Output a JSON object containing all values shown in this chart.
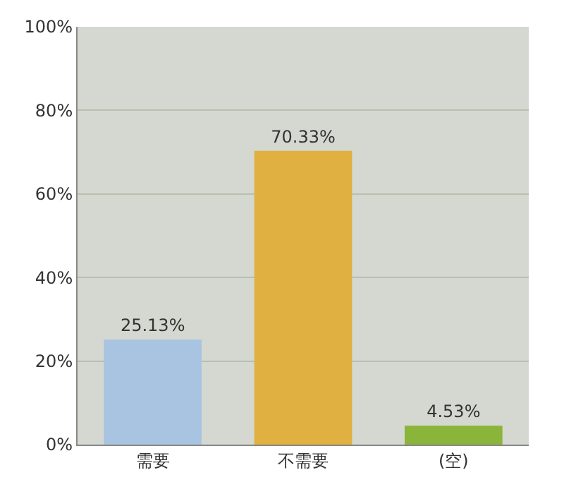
{
  "chart_data": {
    "type": "bar",
    "categories": [
      "需要",
      "不需要",
      "(空)"
    ],
    "values": [
      25.13,
      70.33,
      4.53
    ],
    "colors": [
      "#a9c4e0",
      "#e0b040",
      "#8ab43a"
    ],
    "value_labels": [
      "25.13%",
      "70.33%",
      "4.53%"
    ],
    "ylim": [
      0,
      100
    ],
    "yticks": [
      {
        "value": 0,
        "label": "0%"
      },
      {
        "value": 20,
        "label": "20%"
      },
      {
        "value": 40,
        "label": "40%"
      },
      {
        "value": 60,
        "label": "60%"
      },
      {
        "value": 80,
        "label": "80%"
      },
      {
        "value": 100,
        "label": "100%"
      }
    ],
    "grid": "y"
  }
}
